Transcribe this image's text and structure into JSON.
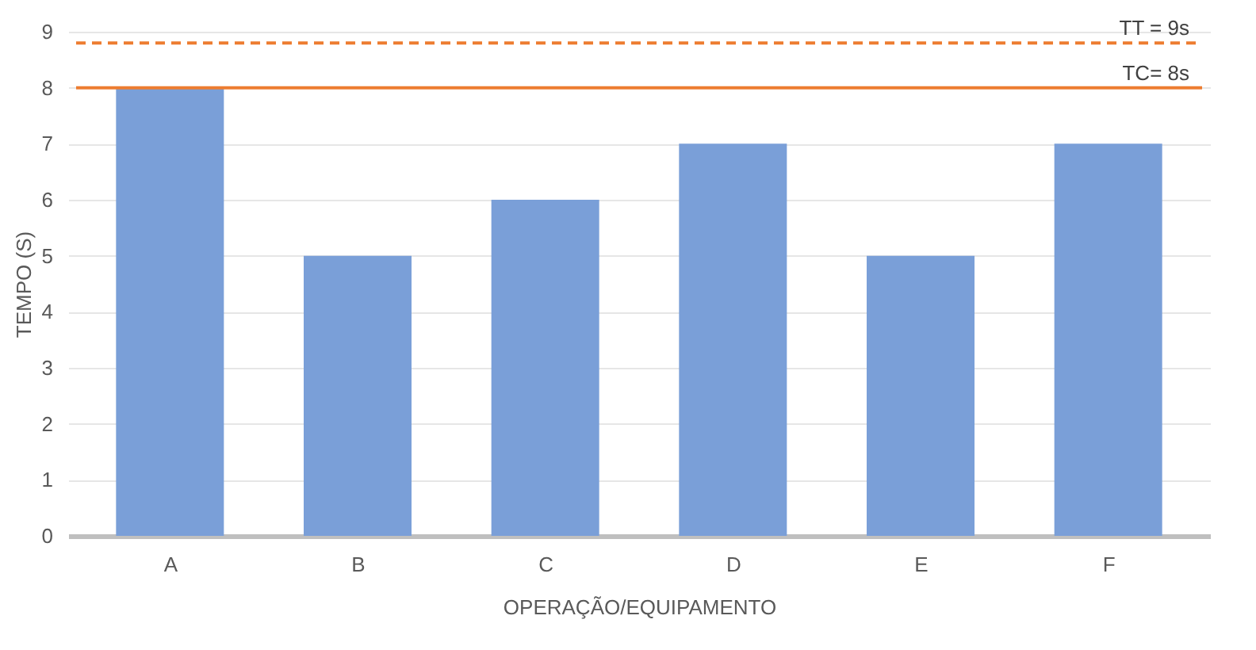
{
  "chart_data": {
    "type": "bar",
    "xlabel": "OPERAÇÃO/EQUIPAMENTO",
    "ylabel": "TEMPO (S)",
    "categories": [
      "A",
      "B",
      "C",
      "D",
      "E",
      "F"
    ],
    "series": [
      {
        "color": "#7a9fd8",
        "values": [
          8,
          5,
          6,
          7,
          5,
          7
        ]
      }
    ],
    "ylim": [
      0,
      9
    ],
    "yticks": [
      0,
      1,
      2,
      3,
      4,
      5,
      6,
      7,
      8,
      9
    ],
    "grid": "y",
    "ref_lines": [
      {
        "axis": "y",
        "value": 8.8,
        "label": "TT = 9s",
        "color": "#ed7d31",
        "line_style": "dashed"
      },
      {
        "axis": "y",
        "value": 8,
        "label": "TC= 8s",
        "color": "#ed7d31",
        "line_style": "solid"
      }
    ]
  }
}
